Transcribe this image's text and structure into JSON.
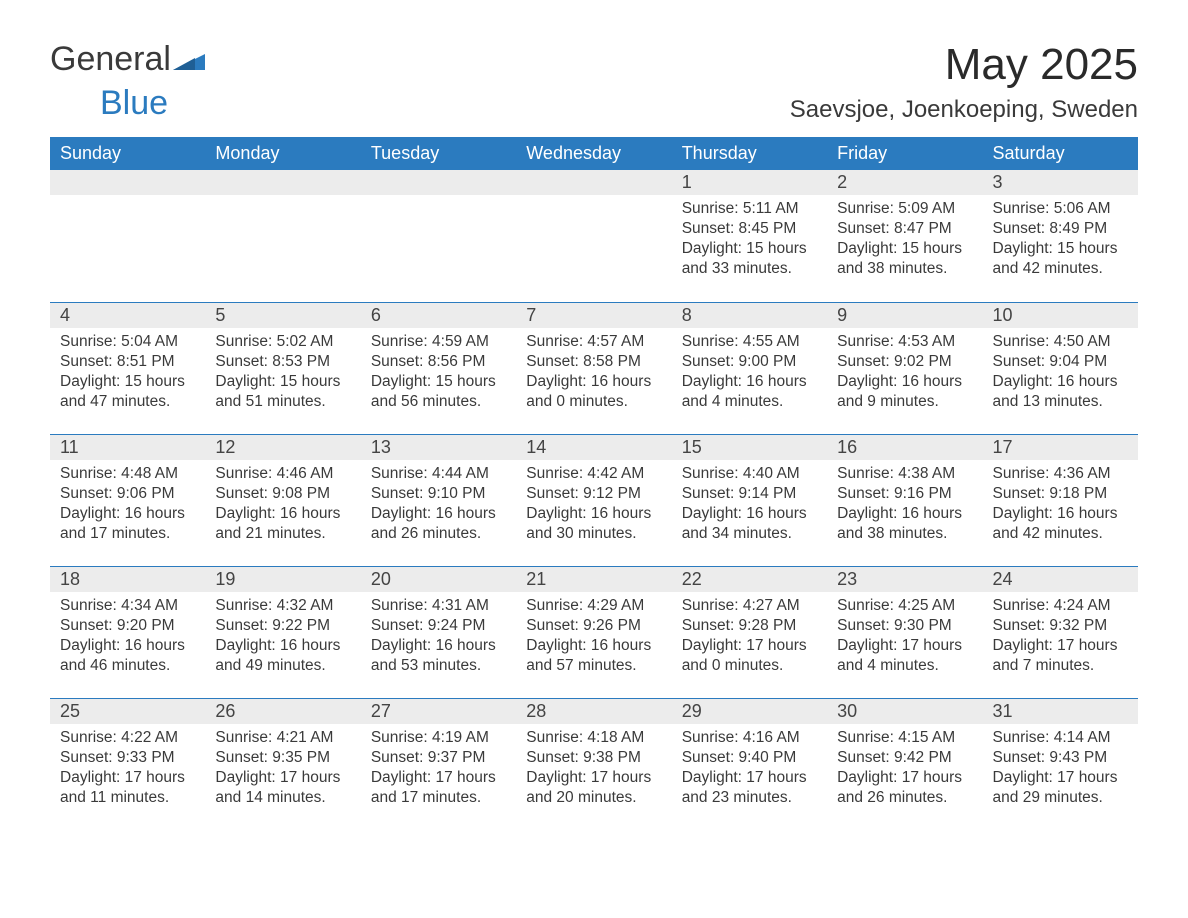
{
  "logo": {
    "text_a": "General",
    "text_b": "Blue"
  },
  "title": "May 2025",
  "location": "Saevsjoe, Joenkoeping, Sweden",
  "colors": {
    "header_bg": "#2b7bbf",
    "header_fg": "#ffffff",
    "daynum_bg": "#ececec",
    "daynum_border": "#2b7bbf",
    "body_text": "#3a3a3a",
    "page_bg": "#ffffff"
  },
  "day_names": [
    "Sunday",
    "Monday",
    "Tuesday",
    "Wednesday",
    "Thursday",
    "Friday",
    "Saturday"
  ],
  "weeks": [
    [
      null,
      null,
      null,
      null,
      {
        "n": "1",
        "sr": "5:11 AM",
        "ss": "8:45 PM",
        "dh": "15",
        "dm": "33"
      },
      {
        "n": "2",
        "sr": "5:09 AM",
        "ss": "8:47 PM",
        "dh": "15",
        "dm": "38"
      },
      {
        "n": "3",
        "sr": "5:06 AM",
        "ss": "8:49 PM",
        "dh": "15",
        "dm": "42"
      }
    ],
    [
      {
        "n": "4",
        "sr": "5:04 AM",
        "ss": "8:51 PM",
        "dh": "15",
        "dm": "47"
      },
      {
        "n": "5",
        "sr": "5:02 AM",
        "ss": "8:53 PM",
        "dh": "15",
        "dm": "51"
      },
      {
        "n": "6",
        "sr": "4:59 AM",
        "ss": "8:56 PM",
        "dh": "15",
        "dm": "56"
      },
      {
        "n": "7",
        "sr": "4:57 AM",
        "ss": "8:58 PM",
        "dh": "16",
        "dm": "0"
      },
      {
        "n": "8",
        "sr": "4:55 AM",
        "ss": "9:00 PM",
        "dh": "16",
        "dm": "4"
      },
      {
        "n": "9",
        "sr": "4:53 AM",
        "ss": "9:02 PM",
        "dh": "16",
        "dm": "9"
      },
      {
        "n": "10",
        "sr": "4:50 AM",
        "ss": "9:04 PM",
        "dh": "16",
        "dm": "13"
      }
    ],
    [
      {
        "n": "11",
        "sr": "4:48 AM",
        "ss": "9:06 PM",
        "dh": "16",
        "dm": "17"
      },
      {
        "n": "12",
        "sr": "4:46 AM",
        "ss": "9:08 PM",
        "dh": "16",
        "dm": "21"
      },
      {
        "n": "13",
        "sr": "4:44 AM",
        "ss": "9:10 PM",
        "dh": "16",
        "dm": "26"
      },
      {
        "n": "14",
        "sr": "4:42 AM",
        "ss": "9:12 PM",
        "dh": "16",
        "dm": "30"
      },
      {
        "n": "15",
        "sr": "4:40 AM",
        "ss": "9:14 PM",
        "dh": "16",
        "dm": "34"
      },
      {
        "n": "16",
        "sr": "4:38 AM",
        "ss": "9:16 PM",
        "dh": "16",
        "dm": "38"
      },
      {
        "n": "17",
        "sr": "4:36 AM",
        "ss": "9:18 PM",
        "dh": "16",
        "dm": "42"
      }
    ],
    [
      {
        "n": "18",
        "sr": "4:34 AM",
        "ss": "9:20 PM",
        "dh": "16",
        "dm": "46"
      },
      {
        "n": "19",
        "sr": "4:32 AM",
        "ss": "9:22 PM",
        "dh": "16",
        "dm": "49"
      },
      {
        "n": "20",
        "sr": "4:31 AM",
        "ss": "9:24 PM",
        "dh": "16",
        "dm": "53"
      },
      {
        "n": "21",
        "sr": "4:29 AM",
        "ss": "9:26 PM",
        "dh": "16",
        "dm": "57"
      },
      {
        "n": "22",
        "sr": "4:27 AM",
        "ss": "9:28 PM",
        "dh": "17",
        "dm": "0"
      },
      {
        "n": "23",
        "sr": "4:25 AM",
        "ss": "9:30 PM",
        "dh": "17",
        "dm": "4"
      },
      {
        "n": "24",
        "sr": "4:24 AM",
        "ss": "9:32 PM",
        "dh": "17",
        "dm": "7"
      }
    ],
    [
      {
        "n": "25",
        "sr": "4:22 AM",
        "ss": "9:33 PM",
        "dh": "17",
        "dm": "11"
      },
      {
        "n": "26",
        "sr": "4:21 AM",
        "ss": "9:35 PM",
        "dh": "17",
        "dm": "14"
      },
      {
        "n": "27",
        "sr": "4:19 AM",
        "ss": "9:37 PM",
        "dh": "17",
        "dm": "17"
      },
      {
        "n": "28",
        "sr": "4:18 AM",
        "ss": "9:38 PM",
        "dh": "17",
        "dm": "20"
      },
      {
        "n": "29",
        "sr": "4:16 AM",
        "ss": "9:40 PM",
        "dh": "17",
        "dm": "23"
      },
      {
        "n": "30",
        "sr": "4:15 AM",
        "ss": "9:42 PM",
        "dh": "17",
        "dm": "26"
      },
      {
        "n": "31",
        "sr": "4:14 AM",
        "ss": "9:43 PM",
        "dh": "17",
        "dm": "29"
      }
    ]
  ],
  "labels": {
    "sunrise": "Sunrise:",
    "sunset": "Sunset:",
    "daylight_a": "Daylight:",
    "hours": "hours",
    "and": "and",
    "minutes": "minutes."
  }
}
